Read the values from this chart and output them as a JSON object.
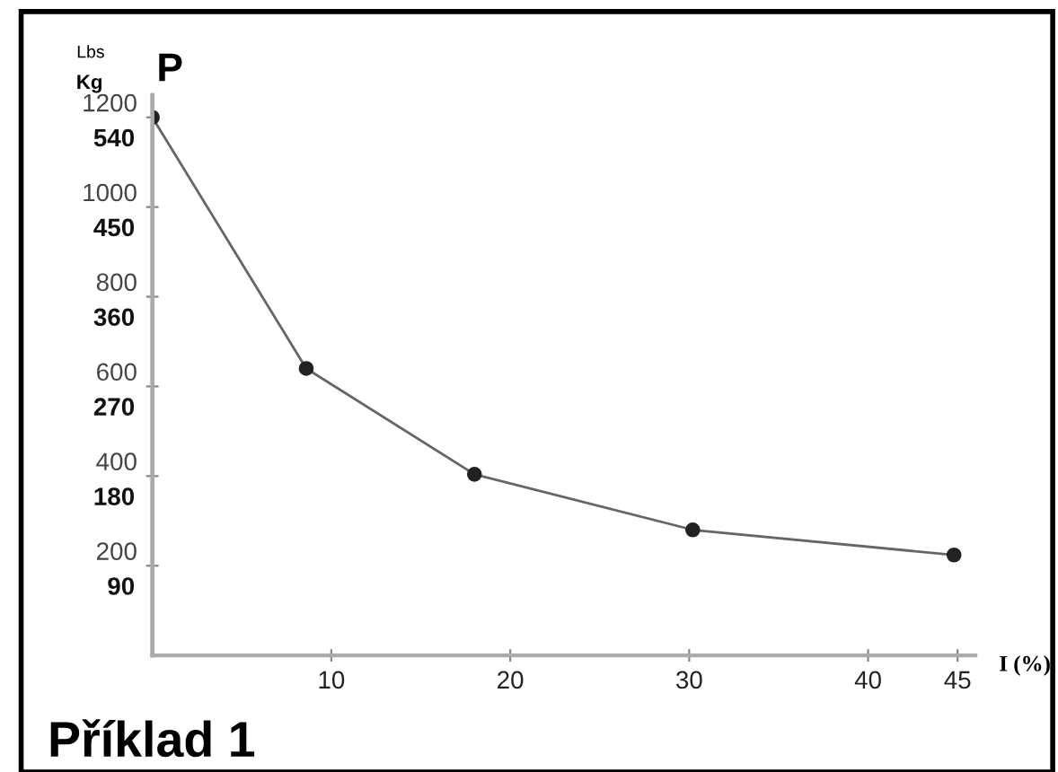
{
  "chart_data": {
    "type": "line",
    "ylabel": "Lbs",
    "xlabel": "I (%)",
    "x": [
      0,
      8.6,
      18,
      30.2,
      44.8
    ],
    "series": [
      {
        "color": "#222222",
        "values": [
          1200,
          640,
          404,
          280,
          224
        ]
      }
    ],
    "marker": "circle",
    "line_style": "solid",
    "xlim": [
      0,
      46
    ],
    "xticks": [
      10,
      20,
      30,
      40,
      45
    ],
    "ylim": [
      0,
      1250
    ],
    "yticks": [
      200,
      400,
      600,
      800,
      1000,
      1200
    ],
    "y2lim": [
      0,
      562.5
    ],
    "y2ticks": [
      90,
      180,
      270,
      360,
      450,
      540
    ],
    "grid": false,
    "annotations": [
      "P",
      "Příklad 1",
      "Kg"
    ]
  }
}
